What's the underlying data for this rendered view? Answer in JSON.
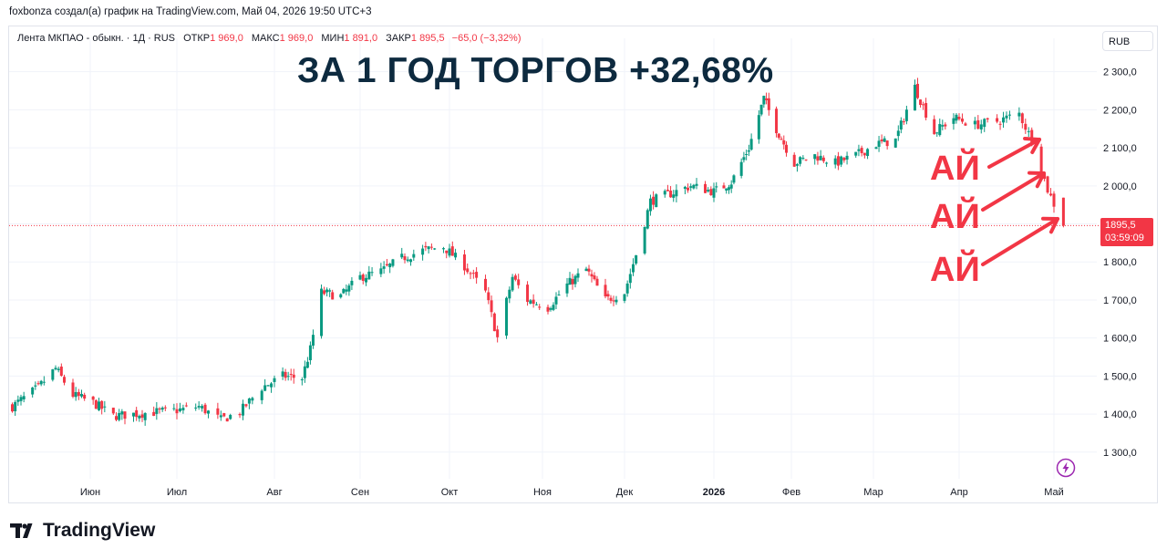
{
  "attribution": "foxbonza создал(а) график на TradingView.com, Май 04, 2026 19:50 UTC+3",
  "legend": {
    "symbol": "Лента МКПАО - обыкн. · 1Д · RUS",
    "open_label": "ОТКР",
    "open_value": "1 969,0",
    "high_label": "МАКС",
    "high_value": "1 969,0",
    "low_label": "МИН",
    "low_value": "1 891,0",
    "close_label": "ЗАКР",
    "close_value": "1 895,5",
    "change": "−65,0 (−3,32%)"
  },
  "headline": "ЗА 1 ГОД ТОРГОВ +32,68%",
  "currency": "RUB",
  "price_tag": {
    "price": "1895,5",
    "countdown": "03:59:09"
  },
  "annotations": [
    "АЙ",
    "АЙ",
    "АЙ"
  ],
  "branding": {
    "logo_text": "TradingView"
  },
  "colors": {
    "up": "#089981",
    "down": "#f23645",
    "headline": "#0d2a3f",
    "grid": "#f0f3fa"
  },
  "chart_data": {
    "type": "candlestick",
    "title": "ЗА 1 ГОД ТОРГОВ +32,68%",
    "ylim": [
      1230,
      2340
    ],
    "y_ticks": [
      "1 300,0",
      "1 400,0",
      "1 500,0",
      "1 600,0",
      "1 700,0",
      "1 800,0",
      "1 900,0",
      "2 000,0",
      "2 100,0",
      "2 200,0",
      "2 300,0"
    ],
    "y_tick_values": [
      1300,
      1400,
      1500,
      1600,
      1700,
      1800,
      1900,
      2000,
      2100,
      2200,
      2300
    ],
    "x_tick_labels": [
      "Июн",
      "Июл",
      "Авг",
      "Сен",
      "Окт",
      "Ноя",
      "Дек",
      "2026",
      "Фев",
      "Мар",
      "Апр",
      "Май"
    ],
    "x_tick_dates": [
      "2025-06-01",
      "2025-07-01",
      "2025-08-01",
      "2025-09-01",
      "2025-10-01",
      "2025-11-01",
      "2025-12-01",
      "2026-01-01",
      "2026-02-01",
      "2026-03-01",
      "2026-04-01",
      "2026-05-01"
    ],
    "last_price": 1895.5,
    "close_path": [
      {
        "date": "2025-05-05",
        "close": 1420
      },
      {
        "date": "2025-05-14",
        "close": 1470
      },
      {
        "date": "2025-05-20",
        "close": 1520
      },
      {
        "date": "2025-05-26",
        "close": 1450
      },
      {
        "date": "2025-06-02",
        "close": 1430
      },
      {
        "date": "2025-06-09",
        "close": 1395
      },
      {
        "date": "2025-06-16",
        "close": 1400
      },
      {
        "date": "2025-06-23",
        "close": 1405
      },
      {
        "date": "2025-07-01",
        "close": 1410
      },
      {
        "date": "2025-07-08",
        "close": 1420
      },
      {
        "date": "2025-07-15",
        "close": 1385
      },
      {
        "date": "2025-07-21",
        "close": 1405
      },
      {
        "date": "2025-07-28",
        "close": 1470
      },
      {
        "date": "2025-08-04",
        "close": 1500
      },
      {
        "date": "2025-08-11",
        "close": 1495
      },
      {
        "date": "2025-08-14",
        "close": 1570
      },
      {
        "date": "2025-08-18",
        "close": 1720
      },
      {
        "date": "2025-08-25",
        "close": 1710
      },
      {
        "date": "2025-09-01",
        "close": 1760
      },
      {
        "date": "2025-09-08",
        "close": 1775
      },
      {
        "date": "2025-09-15",
        "close": 1810
      },
      {
        "date": "2025-09-22",
        "close": 1830
      },
      {
        "date": "2025-09-29",
        "close": 1840
      },
      {
        "date": "2025-10-06",
        "close": 1790
      },
      {
        "date": "2025-10-13",
        "close": 1720
      },
      {
        "date": "2025-10-17",
        "close": 1600
      },
      {
        "date": "2025-10-22",
        "close": 1760
      },
      {
        "date": "2025-10-27",
        "close": 1700
      },
      {
        "date": "2025-11-03",
        "close": 1680
      },
      {
        "date": "2025-11-10",
        "close": 1740
      },
      {
        "date": "2025-11-17",
        "close": 1780
      },
      {
        "date": "2025-11-24",
        "close": 1700
      },
      {
        "date": "2025-12-01",
        "close": 1720
      },
      {
        "date": "2025-12-05",
        "close": 1820
      },
      {
        "date": "2025-12-10",
        "close": 1960
      },
      {
        "date": "2025-12-17",
        "close": 1980
      },
      {
        "date": "2025-12-24",
        "close": 2000
      },
      {
        "date": "2026-01-01",
        "close": 1985
      },
      {
        "date": "2026-01-08",
        "close": 2010
      },
      {
        "date": "2026-01-15",
        "close": 2100
      },
      {
        "date": "2026-01-21",
        "close": 2230
      },
      {
        "date": "2026-01-26",
        "close": 2150
      },
      {
        "date": "2026-02-02",
        "close": 2060
      },
      {
        "date": "2026-02-09",
        "close": 2080
      },
      {
        "date": "2026-02-16",
        "close": 2060
      },
      {
        "date": "2026-02-23",
        "close": 2080
      },
      {
        "date": "2026-03-02",
        "close": 2110
      },
      {
        "date": "2026-03-09",
        "close": 2120
      },
      {
        "date": "2026-03-16",
        "close": 2260
      },
      {
        "date": "2026-03-23",
        "close": 2140
      },
      {
        "date": "2026-03-30",
        "close": 2180
      },
      {
        "date": "2026-04-06",
        "close": 2160
      },
      {
        "date": "2026-04-13",
        "close": 2170
      },
      {
        "date": "2026-04-20",
        "close": 2190
      },
      {
        "date": "2026-04-24",
        "close": 2120
      },
      {
        "date": "2026-04-29",
        "close": 1990
      },
      {
        "date": "2026-05-04",
        "close": 1895.5
      }
    ]
  }
}
